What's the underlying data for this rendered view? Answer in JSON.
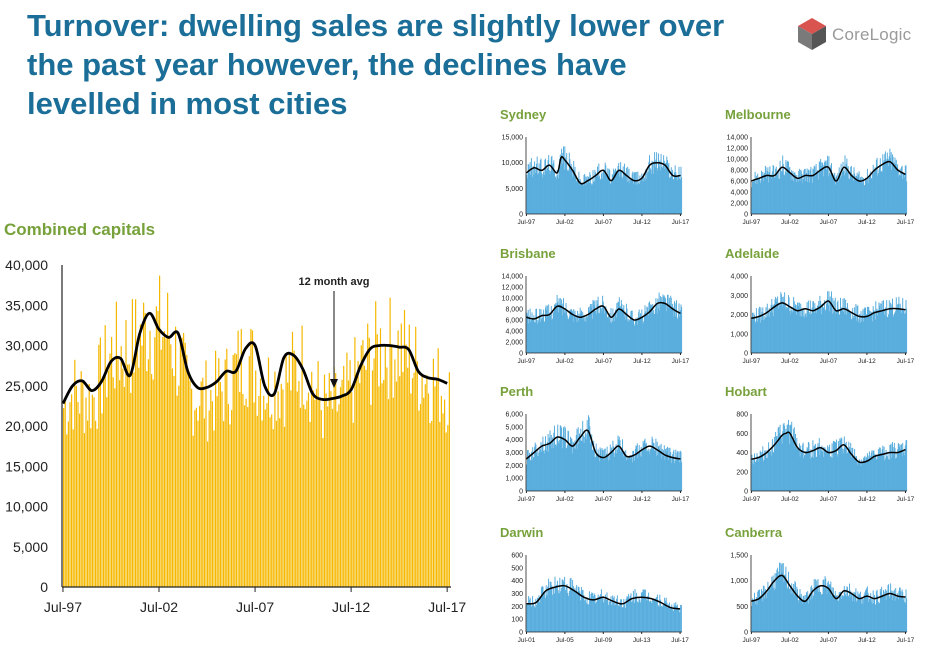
{
  "header": {
    "title": "Turnover: dwelling sales are slightly lower over the past year however, the declines have levelled in most cities"
  },
  "logo": {
    "text": "CoreLogic",
    "colors": {
      "dark": "#555555",
      "red": "#d9534f",
      "grey": "#9a9a9a"
    }
  },
  "colors": {
    "title": "#1a6e97",
    "chart_title": "#77a13b",
    "main_bars": "#f5b800",
    "small_bars": "#5aaede",
    "avg_line": "#000000",
    "axis": "#222222"
  },
  "chart_data": [
    {
      "id": "combined",
      "type": "bar",
      "title": "Combined capitals",
      "xlabel": "",
      "ylabel": "",
      "ylim": [
        0,
        40000
      ],
      "yticks": [
        "0",
        "5,000",
        "10,000",
        "15,000",
        "20,000",
        "25,000",
        "30,000",
        "35,000",
        "40,000"
      ],
      "xticks": [
        "Jul-97",
        "Jul-02",
        "Jul-07",
        "Jul-12",
        "Jul-17"
      ],
      "grid": false,
      "annotation": "12 month avg",
      "series": [
        {
          "name": "12 month avg",
          "x": [
            1997.5,
            1998.0,
            1998.5,
            1999.0,
            1999.5,
            2000.0,
            2000.5,
            2001.0,
            2001.5,
            2002.0,
            2002.5,
            2003.0,
            2003.5,
            2004.0,
            2004.5,
            2005.0,
            2005.5,
            2006.0,
            2006.5,
            2007.0,
            2007.5,
            2008.0,
            2008.5,
            2009.0,
            2009.5,
            2010.0,
            2010.5,
            2011.0,
            2011.5,
            2012.0,
            2012.5,
            2013.0,
            2013.5,
            2014.0,
            2014.5,
            2015.0,
            2015.5,
            2016.0,
            2016.5,
            2017.0,
            2017.5
          ],
          "values": [
            22800,
            25000,
            25600,
            24400,
            25500,
            28000,
            28400,
            26300,
            31500,
            34000,
            32000,
            31000,
            31500,
            26800,
            24800,
            24800,
            25500,
            26800,
            26800,
            29600,
            30000,
            25000,
            24000,
            28500,
            28800,
            27000,
            24000,
            23300,
            23400,
            23700,
            24500,
            27500,
            29600,
            30000,
            30000,
            29800,
            29500,
            26800,
            26000,
            25800,
            25300
          ]
        }
      ],
      "bar_envelope": [
        [
          1997.5,
          24000
        ],
        [
          1998.0,
          26000
        ],
        [
          1999.0,
          25000
        ],
        [
          2000.0,
          31000
        ],
        [
          2001.0,
          32000
        ],
        [
          2002.0,
          35000
        ],
        [
          2003.0,
          34000
        ],
        [
          2004.0,
          26000
        ],
        [
          2005.0,
          25000
        ],
        [
          2006.0,
          27000
        ],
        [
          2007.0,
          31000
        ],
        [
          2008.0,
          27000
        ],
        [
          2009.0,
          27500
        ],
        [
          2010.0,
          30000
        ],
        [
          2011.0,
          24000
        ],
        [
          2012.0,
          24500
        ],
        [
          2013.0,
          29000
        ],
        [
          2014.0,
          32000
        ],
        [
          2015.0,
          32000
        ],
        [
          2016.0,
          29000
        ],
        [
          2017.0,
          27000
        ],
        [
          2017.5,
          26000
        ]
      ]
    },
    {
      "id": "sydney",
      "type": "bar",
      "title": "Sydney",
      "ylim": [
        0,
        15000
      ],
      "yticks": [
        "0",
        "5,000",
        "10,000",
        "15,000"
      ],
      "xticks": [
        "Jul-97",
        "Jul-02",
        "Jul-07",
        "Jul-12",
        "Jul-17"
      ],
      "series": [
        {
          "name": "12 month avg",
          "x": [
            1997.5,
            1998.5,
            1999.5,
            2000.5,
            2001.5,
            2002.0,
            2002.5,
            2003.5,
            2004.5,
            2005.5,
            2006.5,
            2007.5,
            2008.5,
            2009.5,
            2010.5,
            2011.5,
            2012.5,
            2013.5,
            2014.5,
            2015.5,
            2016.5,
            2017.5
          ],
          "values": [
            8000,
            9000,
            8500,
            9500,
            8000,
            11000,
            10500,
            8500,
            6000,
            6500,
            7500,
            8500,
            6500,
            8500,
            7500,
            6500,
            7000,
            9500,
            10000,
            9500,
            7500,
            7500
          ]
        }
      ]
    },
    {
      "id": "melbourne",
      "type": "bar",
      "title": "Melbourne",
      "ylim": [
        0,
        14000
      ],
      "yticks": [
        "0",
        "2,000",
        "4,000",
        "6,000",
        "8,000",
        "10,000",
        "12,000",
        "14,000"
      ],
      "xticks": [
        "Jul-97",
        "Jul-02",
        "Jul-07",
        "Jul-12",
        "Jul-17"
      ],
      "series": [
        {
          "name": "12 month avg",
          "x": [
            1997.5,
            1998.5,
            1999.5,
            2000.5,
            2001.5,
            2002.5,
            2003.5,
            2004.5,
            2005.5,
            2006.5,
            2007.5,
            2008.5,
            2009.5,
            2010.5,
            2011.5,
            2012.5,
            2013.5,
            2014.5,
            2015.5,
            2016.5,
            2017.5
          ],
          "values": [
            6000,
            6500,
            7000,
            7000,
            8500,
            7500,
            6500,
            7000,
            7000,
            8000,
            8500,
            6000,
            8500,
            7000,
            6000,
            6500,
            8000,
            9000,
            9500,
            8000,
            7200
          ]
        }
      ]
    },
    {
      "id": "brisbane",
      "type": "bar",
      "title": "Brisbane",
      "ylim": [
        0,
        14000
      ],
      "yticks": [
        "0",
        "2,000",
        "4,000",
        "6,000",
        "8,000",
        "10,000",
        "12,000",
        "14,000"
      ],
      "xticks": [
        "Jul-97",
        "Jul-02",
        "Jul-07",
        "Jul-12",
        "Jul-17"
      ],
      "series": [
        {
          "name": "12 month avg",
          "x": [
            1997.5,
            1998.5,
            1999.5,
            2000.5,
            2001.5,
            2002.5,
            2003.5,
            2004.5,
            2005.5,
            2006.5,
            2007.5,
            2008.5,
            2009.5,
            2010.5,
            2011.5,
            2012.5,
            2013.5,
            2014.5,
            2015.5,
            2016.5,
            2017.5
          ],
          "values": [
            6500,
            6200,
            6800,
            7000,
            8500,
            8000,
            7000,
            6500,
            7000,
            8000,
            8500,
            6500,
            8000,
            7000,
            6000,
            6500,
            7500,
            9000,
            9000,
            8000,
            7200
          ]
        }
      ]
    },
    {
      "id": "adelaide",
      "type": "bar",
      "title": "Adelaide",
      "ylim": [
        0,
        4000
      ],
      "yticks": [
        "0",
        "1,000",
        "2,000",
        "3,000",
        "4,000"
      ],
      "xticks": [
        "Jul-97",
        "Jul-02",
        "Jul-07",
        "Jul-12",
        "Jul-17"
      ],
      "series": [
        {
          "name": "12 month avg",
          "x": [
            1997.5,
            1998.5,
            1999.5,
            2000.5,
            2001.5,
            2002.5,
            2003.5,
            2004.5,
            2005.5,
            2006.5,
            2007.5,
            2008.5,
            2009.5,
            2010.5,
            2011.5,
            2012.5,
            2013.5,
            2014.5,
            2015.5,
            2016.5,
            2017.5
          ],
          "values": [
            1800,
            1900,
            2100,
            2400,
            2600,
            2400,
            2200,
            2300,
            2200,
            2400,
            2700,
            2200,
            2300,
            2100,
            1900,
            1900,
            2100,
            2200,
            2300,
            2300,
            2250
          ]
        }
      ]
    },
    {
      "id": "perth",
      "type": "bar",
      "title": "Perth",
      "ylim": [
        0,
        6000
      ],
      "yticks": [
        "0",
        "1,000",
        "2,000",
        "3,000",
        "4,000",
        "5,000",
        "6,000"
      ],
      "xticks": [
        "Jul-97",
        "Jul-02",
        "Jul-07",
        "Jul-12",
        "Jul-17"
      ],
      "series": [
        {
          "name": "12 month avg",
          "x": [
            1997.5,
            1998.5,
            1999.5,
            2000.5,
            2001.5,
            2002.5,
            2003.5,
            2004.5,
            2005.5,
            2006.5,
            2007.5,
            2008.5,
            2009.5,
            2010.5,
            2011.5,
            2012.5,
            2013.5,
            2014.5,
            2015.5,
            2016.5,
            2017.5
          ],
          "values": [
            2500,
            3000,
            3500,
            3700,
            4200,
            4000,
            3500,
            4200,
            4700,
            3000,
            2600,
            3000,
            3500,
            2700,
            2800,
            3200,
            3500,
            3200,
            2800,
            2600,
            2500
          ]
        }
      ]
    },
    {
      "id": "hobart",
      "type": "bar",
      "title": "Hobart",
      "ylim": [
        0,
        800
      ],
      "yticks": [
        "0",
        "200",
        "400",
        "600",
        "800"
      ],
      "xticks": [
        "Jul-97",
        "Jul-02",
        "Jul-07",
        "Jul-12",
        "Jul-17"
      ],
      "series": [
        {
          "name": "12 month avg",
          "x": [
            1997.5,
            1998.5,
            1999.5,
            2000.5,
            2001.5,
            2002.0,
            2002.5,
            2003.5,
            2004.5,
            2005.5,
            2006.5,
            2007.5,
            2008.5,
            2009.5,
            2010.5,
            2011.5,
            2012.5,
            2013.5,
            2014.5,
            2015.5,
            2016.5,
            2017.5
          ],
          "values": [
            330,
            350,
            400,
            480,
            580,
            600,
            600,
            450,
            400,
            420,
            450,
            400,
            420,
            480,
            380,
            300,
            310,
            360,
            380,
            400,
            400,
            430
          ]
        }
      ]
    },
    {
      "id": "darwin",
      "type": "bar",
      "title": "Darwin",
      "ylim": [
        0,
        600
      ],
      "yticks": [
        "0",
        "100",
        "200",
        "300",
        "400",
        "500",
        "600"
      ],
      "xticks": [
        "Jul-01",
        "Jul-05",
        "Jul-09",
        "Jul-13",
        "Jul-17"
      ],
      "series": [
        {
          "name": "12 month avg",
          "x": [
            2001.5,
            2002.5,
            2003.5,
            2004.5,
            2005.5,
            2006.5,
            2007.5,
            2008.5,
            2009.5,
            2010.5,
            2011.5,
            2012.5,
            2013.5,
            2014.5,
            2015.5,
            2016.5,
            2017.5
          ],
          "values": [
            220,
            230,
            320,
            350,
            360,
            320,
            270,
            250,
            270,
            240,
            220,
            260,
            270,
            260,
            230,
            190,
            180
          ]
        }
      ]
    },
    {
      "id": "canberra",
      "type": "bar",
      "title": "Canberra",
      "ylim": [
        0,
        1500
      ],
      "yticks": [
        "0",
        "500",
        "1,000",
        "1,500"
      ],
      "xticks": [
        "Jul-97",
        "Jul-02",
        "Jul-07",
        "Jul-12",
        "Jul-17"
      ],
      "series": [
        {
          "name": "12 month avg",
          "x": [
            1997.5,
            1998.5,
            1999.5,
            2000.5,
            2001.5,
            2002.5,
            2003.5,
            2004.5,
            2005.5,
            2006.5,
            2007.5,
            2008.5,
            2009.5,
            2010.5,
            2011.5,
            2012.5,
            2013.5,
            2014.5,
            2015.5,
            2016.5,
            2017.5
          ],
          "values": [
            600,
            650,
            800,
            1000,
            1100,
            900,
            700,
            600,
            800,
            900,
            850,
            650,
            800,
            750,
            650,
            700,
            650,
            700,
            750,
            700,
            680
          ]
        }
      ]
    }
  ]
}
